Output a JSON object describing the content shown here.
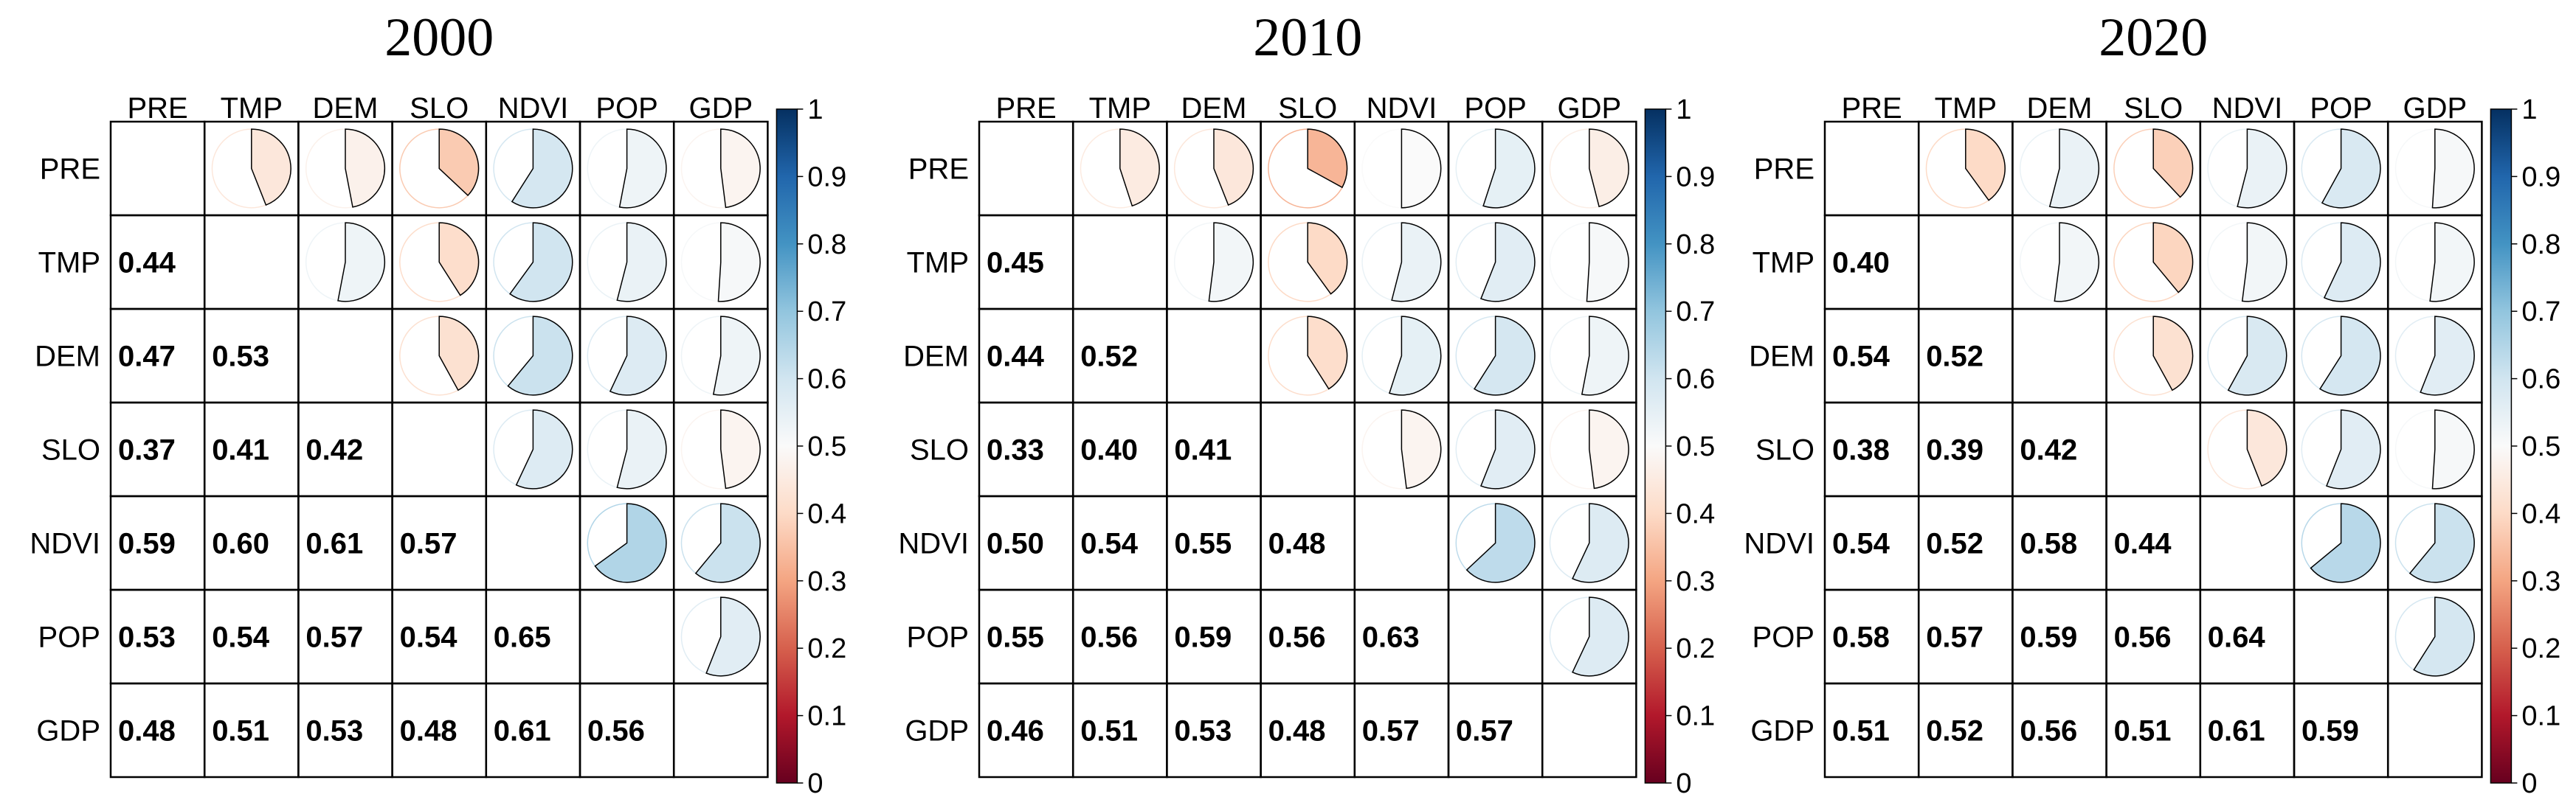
{
  "chart_data": [
    {
      "type": "heatmap",
      "title": "2000",
      "variables": [
        "PRE",
        "TMP",
        "DEM",
        "SLO",
        "NDVI",
        "POP",
        "GDP"
      ],
      "matrix": [
        [
          null,
          0.44,
          0.47,
          0.37,
          0.59,
          0.53,
          0.48
        ],
        [
          0.44,
          null,
          0.53,
          0.41,
          0.6,
          0.54,
          0.51
        ],
        [
          0.47,
          0.53,
          null,
          0.42,
          0.61,
          0.57,
          0.53
        ],
        [
          0.37,
          0.41,
          0.42,
          null,
          0.57,
          0.54,
          0.48
        ],
        [
          0.59,
          0.6,
          0.61,
          0.57,
          null,
          0.65,
          0.61
        ],
        [
          0.53,
          0.54,
          0.57,
          0.54,
          0.65,
          null,
          0.56
        ],
        [
          0.48,
          0.51,
          0.53,
          0.48,
          0.61,
          0.56,
          null
        ]
      ],
      "lower_triangle": "numbers",
      "upper_triangle": "pie",
      "colorbar": {
        "ticks": [
          "0",
          "0.1",
          "0.2",
          "0.3",
          "0.4",
          "0.5",
          "0.6",
          "0.7",
          "0.8",
          "0.9",
          "1"
        ],
        "range": [
          0,
          1
        ]
      }
    },
    {
      "type": "heatmap",
      "title": "2010",
      "variables": [
        "PRE",
        "TMP",
        "DEM",
        "SLO",
        "NDVI",
        "POP",
        "GDP"
      ],
      "matrix": [
        [
          null,
          0.45,
          0.44,
          0.33,
          0.5,
          0.55,
          0.46
        ],
        [
          0.45,
          null,
          0.52,
          0.4,
          0.54,
          0.56,
          0.51
        ],
        [
          0.44,
          0.52,
          null,
          0.41,
          0.55,
          0.59,
          0.53
        ],
        [
          0.33,
          0.4,
          0.41,
          null,
          0.48,
          0.56,
          0.48
        ],
        [
          0.5,
          0.54,
          0.55,
          0.48,
          null,
          0.63,
          0.57
        ],
        [
          0.55,
          0.56,
          0.59,
          0.56,
          0.63,
          null,
          0.57
        ],
        [
          0.46,
          0.51,
          0.53,
          0.48,
          0.57,
          0.57,
          null
        ]
      ],
      "lower_triangle": "numbers",
      "upper_triangle": "pie",
      "colorbar": {
        "ticks": [
          "0",
          "0.1",
          "0.2",
          "0.3",
          "0.4",
          "0.5",
          "0.6",
          "0.7",
          "0.8",
          "0.9",
          "1"
        ],
        "range": [
          0,
          1
        ]
      }
    },
    {
      "type": "heatmap",
      "title": "2020",
      "variables": [
        "PRE",
        "TMP",
        "DEM",
        "SLO",
        "NDVI",
        "POP",
        "GDP"
      ],
      "matrix": [
        [
          null,
          0.4,
          0.54,
          0.38,
          0.54,
          0.58,
          0.51
        ],
        [
          0.4,
          null,
          0.52,
          0.39,
          0.52,
          0.57,
          0.52
        ],
        [
          0.54,
          0.52,
          null,
          0.42,
          0.58,
          0.59,
          0.56
        ],
        [
          0.38,
          0.39,
          0.42,
          null,
          0.44,
          0.56,
          0.51
        ],
        [
          0.54,
          0.52,
          0.58,
          0.44,
          null,
          0.64,
          0.61
        ],
        [
          0.58,
          0.57,
          0.59,
          0.56,
          0.64,
          null,
          0.59
        ],
        [
          0.51,
          0.52,
          0.56,
          0.51,
          0.61,
          0.59,
          null
        ]
      ],
      "lower_triangle": "numbers",
      "upper_triangle": "pie",
      "colorbar": {
        "ticks": [
          "0",
          "0.1",
          "0.2",
          "0.3",
          "0.4",
          "0.5",
          "0.6",
          "0.7",
          "0.8",
          "0.9",
          "1"
        ],
        "range": [
          0,
          1
        ]
      }
    }
  ]
}
